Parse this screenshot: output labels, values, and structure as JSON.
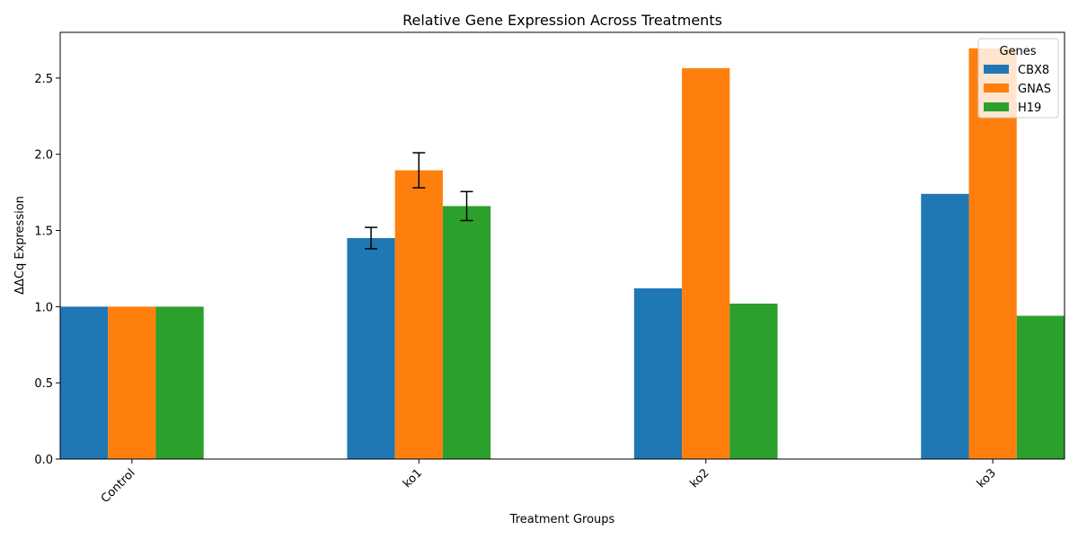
{
  "chart_data": {
    "type": "bar",
    "title": "Relative Gene Expression Across Treatments",
    "xlabel": "Treatment Groups",
    "ylabel": "ΔΔCq Expression",
    "categories": [
      "Control",
      "ko1",
      "ko2",
      "ko3"
    ],
    "series": [
      {
        "name": "CBX8",
        "color": "#1f77b4",
        "values": [
          1.0,
          1.45,
          1.12,
          1.74
        ],
        "errors": [
          null,
          0.07,
          null,
          null
        ]
      },
      {
        "name": "GNAS",
        "color": "#ff7f0e",
        "values": [
          1.0,
          1.895,
          2.565,
          2.695
        ],
        "errors": [
          null,
          0.115,
          null,
          null
        ]
      },
      {
        "name": "H19",
        "color": "#2ca02c",
        "values": [
          1.0,
          1.66,
          1.02,
          0.94
        ],
        "errors": [
          null,
          0.095,
          null,
          null
        ]
      }
    ],
    "ylim": [
      0,
      2.8
    ],
    "yticks": [
      "0.0",
      "0.5",
      "1.0",
      "1.5",
      "2.0",
      "2.5"
    ],
    "legend": {
      "title": "Genes",
      "position": "top-right"
    },
    "grid": false,
    "x_tick_rotation": 45
  }
}
